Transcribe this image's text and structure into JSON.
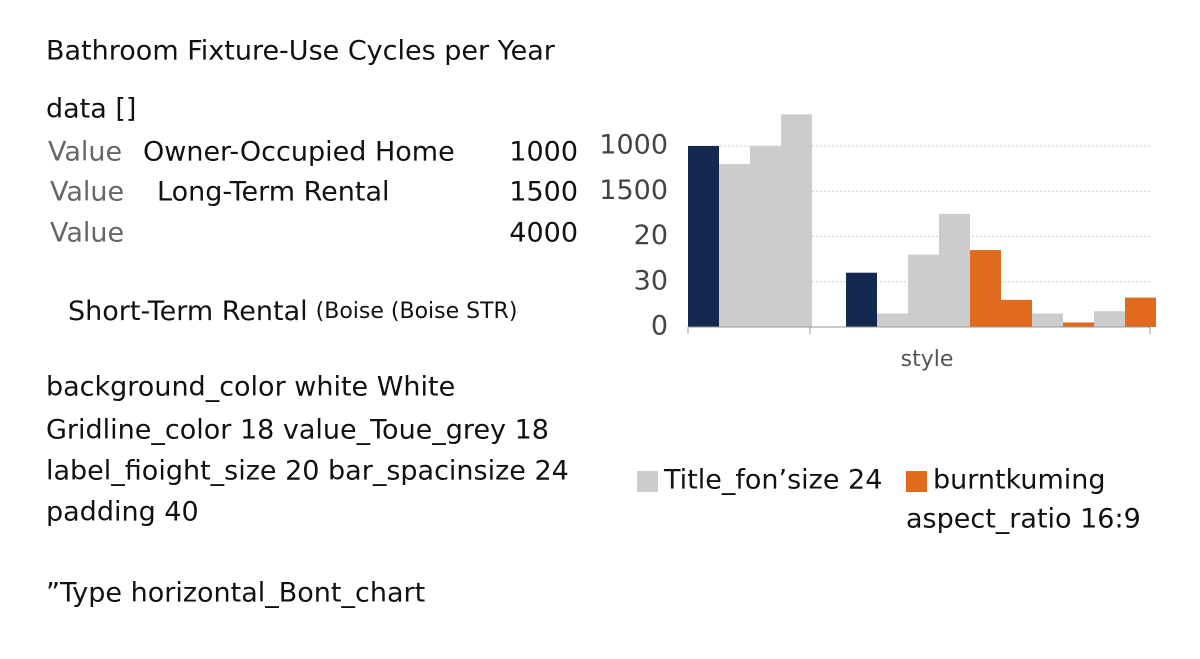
{
  "header": {
    "title": "Bathroom Fixture-Use Cycles per Year"
  },
  "data_block": {
    "heading": "data []",
    "rows": [
      {
        "key": "Value",
        "label": "Owner-Occupied Home",
        "value": 1000
      },
      {
        "key": "Value",
        "label": "Long-Term Rental",
        "value": 1500
      },
      {
        "key": "Value",
        "value": 4000
      }
    ],
    "note": "Short-Term Rental",
    "note_small": "(Boise (Boise STR)"
  },
  "settings": [
    "background_color  white White",
    "Gridline_color 18 value_Toue_grey 18",
    "label_fioight_size 20 bar_spacinsize 24",
    "padding  40"
  ],
  "type_line": "”Type  horizontal_Bont_chart",
  "chart_data": {
    "type": "bar",
    "x_label": "style",
    "categories": [
      null,
      null
    ],
    "bars": [
      [
        {
          "value": 4.0,
          "color": "#13294f"
        },
        {
          "value": 3.6,
          "color": "#cccccc"
        },
        {
          "value": 4.0,
          "color": "#cccccc"
        },
        {
          "value": 4.7,
          "color": "#cccccc"
        }
      ],
      [
        {
          "value": 1.2,
          "color": "#13294f"
        },
        {
          "value": 0.3,
          "color": "#cccccc"
        },
        {
          "value": 1.6,
          "color": "#cccccc"
        },
        {
          "value": 2.5,
          "color": "#cccccc"
        },
        {
          "value": 1.7,
          "color": "#e06a1e"
        },
        {
          "value": 0.6,
          "color": "#e06a1e"
        },
        {
          "value": 0.3,
          "color": "#cccccc"
        },
        {
          "value": 0.1,
          "color": "#e06a1e"
        },
        {
          "value": 0.35,
          "color": "#cccccc"
        },
        {
          "value": 0.65,
          "color": "#e06a1e"
        }
      ]
    ],
    "ylim": [
      0,
      4
    ],
    "yticks": [
      {
        "value": 0,
        "label": "0"
      },
      {
        "value": 1,
        "label": "30"
      },
      {
        "value": 2,
        "label": "20"
      },
      {
        "value": 3,
        "label": "1500"
      },
      {
        "value": 4,
        "label": "1000"
      }
    ],
    "grid": true,
    "grid_color": "#cfcfcf",
    "legend": [
      {
        "name": "Title_fon’size 24",
        "color": "#cccccc"
      },
      {
        "name": "burntkuming",
        "color": "#e06a1e"
      }
    ],
    "legend_note": "aspect_ratio 16:9"
  }
}
